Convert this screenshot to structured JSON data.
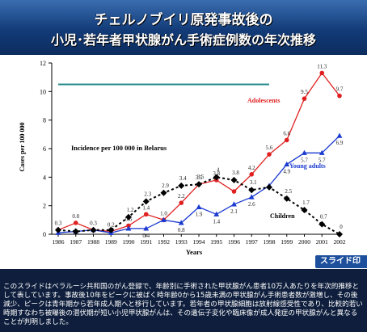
{
  "header": {
    "title_line1": "チェルノブイリ原発事故後の",
    "title_line2": "小児･若年者甲状腺がん手術症例数の年次推移"
  },
  "badge": {
    "label": "スライド印刷"
  },
  "caption": {
    "text": "このスライドはベラルーシ共和国のがん登録で、年齢別に手術された甲状腺がん患者10万人あたりを年次的推移として表しています。事故後10年をピークに被ばく時年齢0から15歳未満の甲状腺がん手術患者数が激増し、その後減少、ピークは青年期から若年成人期へと移行しています。若年者の甲状腺細胞は放射線感受性であり、比較的若い時期すなわち被曝後の潜伏期が短い小児甲状腺がんは、その遺伝子変化や臨床像が成人発症の甲状腺がんと異なることが判明しました。"
  },
  "colors": {
    "adolescents": "#e02020",
    "young_adults": "#1a3ad0",
    "children": "#000000",
    "teal_line": "#2a8c8c"
  },
  "chart_data": {
    "type": "line",
    "title": "Incidence per 100 000 in Belarus",
    "xlabel": "Years",
    "ylabel": "Cases per 100 000",
    "x": [
      "1986",
      "1987",
      "1988",
      "1989",
      "1990",
      "1991",
      "1992",
      "1993",
      "1994",
      "1995",
      "1996",
      "1997",
      "1998",
      "1999",
      "2000",
      "2001",
      "2002"
    ],
    "ylim": [
      0,
      12
    ],
    "yticks": [
      0,
      2,
      4,
      6,
      8,
      10,
      12
    ],
    "grid": false,
    "series": [
      {
        "name": "Adolescents",
        "color_key": "adolescents",
        "marker": "circle",
        "values": [
          0.3,
          0.8,
          0.3,
          0.2,
          0.6,
          1.4,
          1.0,
          2.2,
          3.5,
          3.8,
          3.0,
          4.2,
          5.6,
          6.6,
          9.5,
          11.3,
          9.7
        ],
        "labels": [
          "0.3",
          "0.8",
          "0.3",
          "0.2",
          "0.6",
          "1.4",
          "1.0",
          "2.2",
          "3.5",
          "3.8",
          "",
          "4.2",
          "5.6",
          "6.6",
          "9.5",
          "11.3",
          "9.7"
        ]
      },
      {
        "name": "Young adults",
        "color_key": "young_adults",
        "marker": "triangle",
        "values": [
          0.1,
          0.2,
          0.3,
          0.1,
          0.4,
          0.4,
          1.0,
          0.8,
          1.9,
          1.4,
          2.1,
          2.6,
          3.4,
          4.9,
          5.7,
          5.7,
          6.9
        ],
        "labels": [
          "",
          "",
          "",
          "",
          "",
          "0.4",
          "",
          "0.8",
          "1.9",
          "1.4",
          "2.1",
          "2.6",
          "",
          "4.9",
          "5.7",
          "5.7",
          "6.9"
        ]
      },
      {
        "name": "Children",
        "color_key": "children",
        "marker": "diamond",
        "values": [
          0.3,
          0.2,
          0.3,
          0.3,
          1.2,
          2.3,
          2.9,
          3.4,
          3.5,
          4.0,
          3.8,
          3.1,
          3.3,
          2.5,
          1.7,
          0.7,
          0.0
        ],
        "labels": [
          "",
          "",
          "",
          "",
          "1.2",
          "2.3",
          "2.9",
          "3.4",
          "3.5",
          "4",
          "3.8",
          "3.1",
          "",
          "2.5",
          "1.7",
          "0.7",
          "0"
        ]
      }
    ],
    "annotations": [
      {
        "text": "Adolescents",
        "series": "Adolescents"
      },
      {
        "text": "Young adults",
        "series": "Young adults"
      },
      {
        "text": "Children",
        "series": "Children"
      }
    ],
    "reference_line": {
      "y": 10.5,
      "x_from": "1986",
      "x_to": "1998"
    }
  }
}
